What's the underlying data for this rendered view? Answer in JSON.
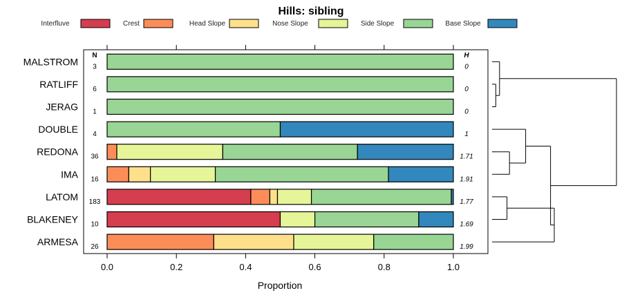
{
  "chart_data": {
    "type": "bar",
    "subtype": "stacked-horizontal-proportion",
    "title": "Hills: sibling",
    "xlabel": "Proportion",
    "ylabel": "",
    "xlim": [
      0,
      1
    ],
    "x_ticks": [
      "0.0",
      "0.2",
      "0.4",
      "0.6",
      "0.8",
      "1.0"
    ],
    "x_tick_values": [
      0,
      0.2,
      0.4,
      0.6,
      0.8,
      1.0
    ],
    "n_header": "N",
    "h_header": "H",
    "legend_position": "top",
    "legend": [
      {
        "name": "Interfluve",
        "color": "#D53E4F"
      },
      {
        "name": "Crest",
        "color": "#FC8D59"
      },
      {
        "name": "Head Slope",
        "color": "#FEE08B"
      },
      {
        "name": "Nose Slope",
        "color": "#E6F598"
      },
      {
        "name": "Side Slope",
        "color": "#99D594"
      },
      {
        "name": "Base Slope",
        "color": "#3288BD"
      }
    ],
    "categories": [
      "MALSTROM",
      "RATLIFF",
      "JERAG",
      "DOUBLE",
      "REDONA",
      "IMA",
      "LATOM",
      "BLAKENEY",
      "ARMESA"
    ],
    "n": [
      "3",
      "6",
      "1",
      "4",
      "36",
      "16",
      "183",
      "10",
      "26"
    ],
    "h": [
      "0",
      "0",
      "0",
      "1",
      "1.71",
      "1.91",
      "1.77",
      "1.69",
      "1.99"
    ],
    "series": [
      {
        "name": "Interfluve",
        "values": [
          0,
          0,
          0,
          0,
          0,
          0,
          0.415,
          0.5,
          0
        ]
      },
      {
        "name": "Crest",
        "values": [
          0,
          0,
          0,
          0,
          0.028,
          0.0625,
          0.055,
          0,
          0.308
        ]
      },
      {
        "name": "Head Slope",
        "values": [
          0,
          0,
          0,
          0,
          0,
          0.0625,
          0.022,
          0,
          0.231
        ]
      },
      {
        "name": "Nose Slope",
        "values": [
          0,
          0,
          0,
          0,
          0.306,
          0.1875,
          0.098,
          0.1,
          0.231
        ]
      },
      {
        "name": "Side Slope",
        "values": [
          1,
          1,
          1,
          0.5,
          0.389,
          0.5,
          0.404,
          0.3,
          0.23
        ]
      },
      {
        "name": "Base Slope",
        "values": [
          0,
          0,
          0,
          0.5,
          0.277,
          0.1875,
          0.006,
          0.1,
          0
        ]
      }
    ],
    "dendrogram": {
      "leaves": [
        "MALSTROM",
        "RATLIFF",
        "JERAG",
        "DOUBLE",
        "REDONA",
        "IMA",
        "LATOM",
        "BLAKENEY",
        "ARMESA"
      ],
      "merges": [
        {
          "a": 1,
          "b": 2,
          "height": 0.03
        },
        {
          "a": 0,
          "b": -1,
          "height": 0.06
        },
        {
          "a": 4,
          "b": 5,
          "height": 0.14
        },
        {
          "a": 3,
          "b": -3,
          "height": 0.27
        },
        {
          "a": 6,
          "b": 7,
          "height": 0.12
        },
        {
          "a": -5,
          "b": 8,
          "height": 0.5
        },
        {
          "a": -4,
          "b": -6,
          "height": 0.47
        },
        {
          "a": -2,
          "b": -7,
          "height": 1.0
        }
      ]
    }
  }
}
